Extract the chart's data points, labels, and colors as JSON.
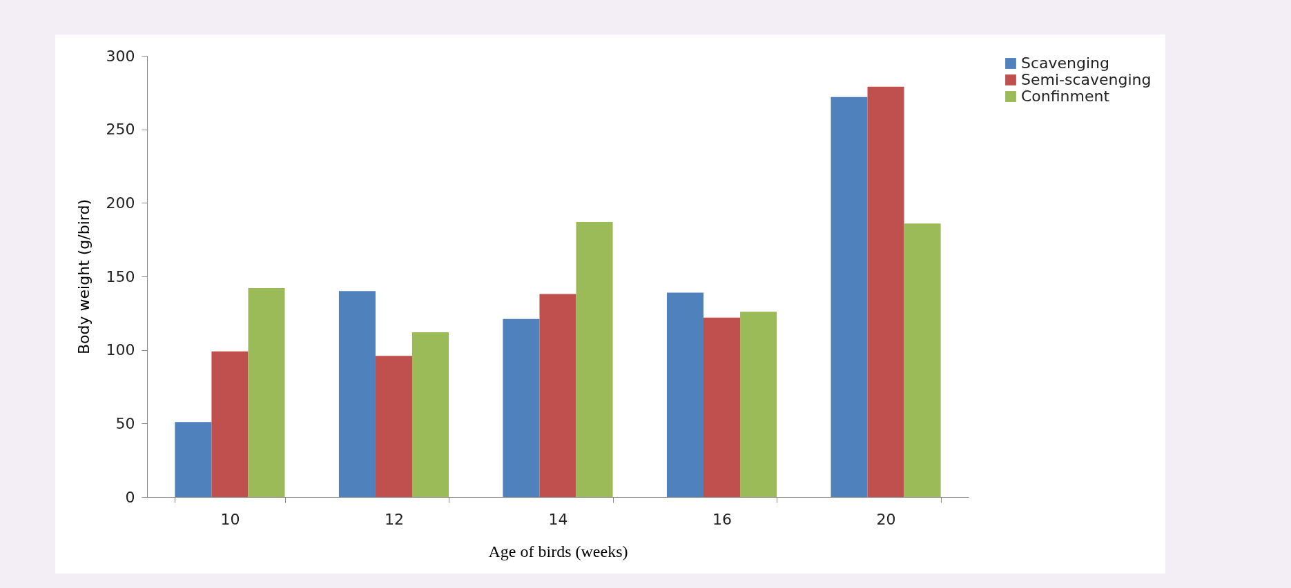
{
  "chart_data": {
    "type": "bar",
    "xlabel": "Age of birds (weeks)",
    "ylabel": "Body weight (g/bird)",
    "categories": [
      "10",
      "12",
      "14",
      "16",
      "20"
    ],
    "series": [
      {
        "name": "Scavenging",
        "color": "#4f81bd",
        "values": [
          51,
          140,
          121,
          139,
          272
        ]
      },
      {
        "name": "Semi-scavenging",
        "color": "#c0504d",
        "values": [
          99,
          96,
          138,
          122,
          279
        ]
      },
      {
        "name": "Confinment",
        "color": "#9bbb59",
        "values": [
          142,
          112,
          187,
          126,
          186
        ]
      }
    ],
    "ylim": [
      0,
      300
    ],
    "yticks": [
      0,
      50,
      100,
      150,
      200,
      250,
      300
    ],
    "grid": false,
    "legend": "right"
  }
}
